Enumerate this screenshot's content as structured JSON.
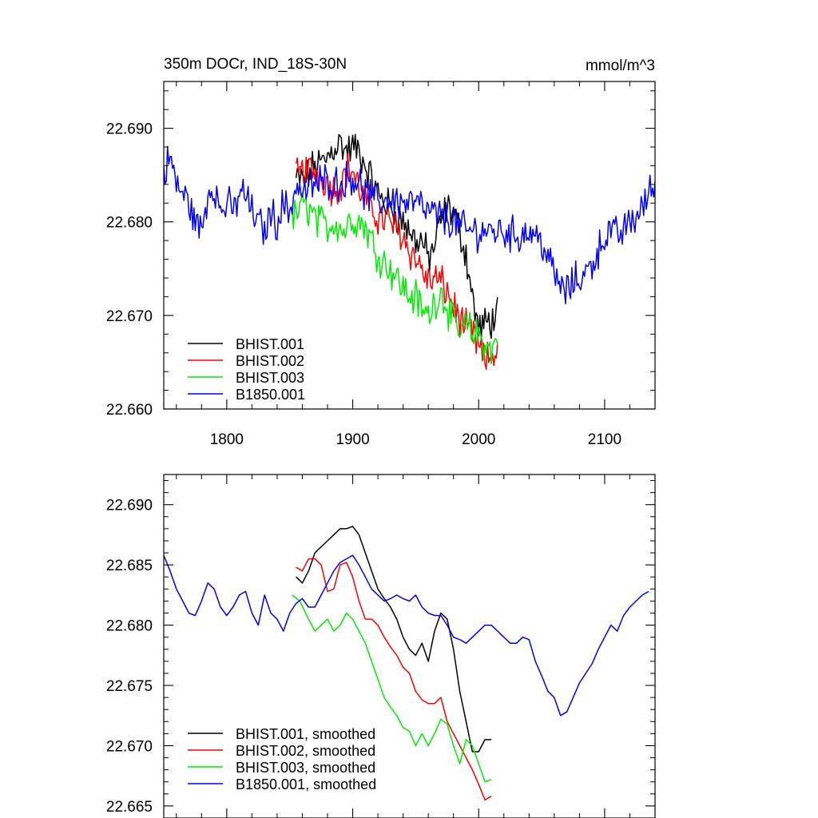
{
  "colors": {
    "BHIST.001": "#000000",
    "BHIST.002": "#ff0000",
    "BHIST.003": "#00ee00",
    "B1850.001": "#0000ff"
  },
  "chart_data": [
    {
      "type": "line",
      "title": "350m DOCr, IND_18S-30N",
      "units": "mmol/m^3",
      "xlim": [
        1750,
        2140
      ],
      "ylim": [
        22.66,
        22.695
      ],
      "x_ticks": [
        1800,
        1900,
        2000,
        2100
      ],
      "x_tick_labels": [
        "1800",
        "1900",
        "2000",
        "2100"
      ],
      "y_ticks": [
        22.66,
        22.67,
        22.68,
        22.69
      ],
      "y_tick_labels": [
        "22.660",
        "22.670",
        "22.680",
        "22.690"
      ],
      "legend_position": "bottom-left",
      "grid": false,
      "noisy": true,
      "series": [
        {
          "name": "BHIST.001",
          "color": "#000000",
          "x": [
            1855,
            1862,
            1870,
            1878,
            1885,
            1890,
            1895,
            1900,
            1905,
            1910,
            1915,
            1920,
            1930,
            1940,
            1945,
            1950,
            1955,
            1960,
            1965,
            1970,
            1975,
            1980,
            1985,
            1990,
            1995,
            2000,
            2005,
            2010,
            2015
          ],
          "y": [
            22.6845,
            22.6845,
            22.686,
            22.6865,
            22.688,
            22.6885,
            22.6875,
            22.688,
            22.6875,
            22.686,
            22.6845,
            22.683,
            22.6815,
            22.68,
            22.679,
            22.678,
            22.678,
            22.676,
            22.6775,
            22.68,
            22.6815,
            22.681,
            22.679,
            22.6765,
            22.672,
            22.6685,
            22.669,
            22.6695,
            22.67
          ]
        },
        {
          "name": "BHIST.002",
          "color": "#ff0000",
          "x": [
            1855,
            1862,
            1870,
            1878,
            1885,
            1890,
            1895,
            1900,
            1905,
            1910,
            1915,
            1920,
            1930,
            1940,
            1945,
            1950,
            1955,
            1960,
            1965,
            1970,
            1975,
            1980,
            1985,
            1990,
            1995,
            2000,
            2005,
            2010,
            2015
          ],
          "y": [
            22.685,
            22.6855,
            22.6855,
            22.6845,
            22.6835,
            22.684,
            22.6855,
            22.6855,
            22.6835,
            22.6825,
            22.6815,
            22.6805,
            22.68,
            22.6785,
            22.677,
            22.676,
            22.675,
            22.6735,
            22.674,
            22.6735,
            22.6725,
            22.671,
            22.6695,
            22.6685,
            22.668,
            22.6665,
            22.665,
            22.6655,
            22.6665
          ]
        },
        {
          "name": "BHIST.003",
          "color": "#00ee00",
          "x": [
            1852,
            1858,
            1865,
            1872,
            1880,
            1887,
            1893,
            1900,
            1905,
            1910,
            1915,
            1920,
            1930,
            1940,
            1945,
            1950,
            1955,
            1960,
            1965,
            1970,
            1975,
            1980,
            1985,
            1990,
            1995,
            2000,
            2005,
            2010,
            2015
          ],
          "y": [
            22.68,
            22.6815,
            22.6815,
            22.68,
            22.6795,
            22.68,
            22.679,
            22.6805,
            22.68,
            22.6795,
            22.678,
            22.6765,
            22.675,
            22.673,
            22.672,
            22.672,
            22.6705,
            22.67,
            22.6715,
            22.6725,
            22.671,
            22.669,
            22.668,
            22.669,
            22.668,
            22.668,
            22.667,
            22.666,
            22.668
          ]
        },
        {
          "name": "B1850.001",
          "color": "#0000ff",
          "x": [
            1750,
            1755,
            1760,
            1765,
            1770,
            1775,
            1780,
            1785,
            1790,
            1795,
            1800,
            1805,
            1810,
            1815,
            1820,
            1825,
            1830,
            1835,
            1840,
            1845,
            1850,
            1855,
            1860,
            1870,
            1880,
            1890,
            1900,
            1910,
            1920,
            1930,
            1940,
            1950,
            1960,
            1970,
            1980,
            1990,
            2000,
            2010,
            2020,
            2030,
            2040,
            2050,
            2055,
            2060,
            2065,
            2070,
            2075,
            2080,
            2085,
            2090,
            2095,
            2100,
            2105,
            2110,
            2115,
            2120,
            2125,
            2130,
            2135,
            2140
          ],
          "y": [
            22.685,
            22.687,
            22.684,
            22.683,
            22.682,
            22.68,
            22.679,
            22.683,
            22.684,
            22.681,
            22.682,
            22.681,
            22.683,
            22.683,
            22.681,
            22.68,
            22.679,
            22.681,
            22.68,
            22.682,
            22.681,
            22.684,
            22.683,
            22.684,
            22.6845,
            22.684,
            22.685,
            22.683,
            22.682,
            22.6825,
            22.682,
            22.682,
            22.681,
            22.6805,
            22.68,
            22.679,
            22.679,
            22.679,
            22.679,
            22.6785,
            22.679,
            22.678,
            22.676,
            22.6745,
            22.673,
            22.6725,
            22.6735,
            22.674,
            22.6745,
            22.6755,
            22.677,
            22.6785,
            22.679,
            22.6785,
            22.679,
            22.68,
            22.6805,
            22.6815,
            22.683,
            22.684
          ]
        }
      ]
    },
    {
      "type": "line",
      "xlim": [
        1750,
        2140
      ],
      "ylim": [
        22.664,
        22.6925
      ],
      "x_ticks": [
        1800,
        1900,
        2000,
        2100
      ],
      "y_ticks": [
        22.665,
        22.67,
        22.675,
        22.68,
        22.685,
        22.69
      ],
      "y_tick_labels": [
        "22.665",
        "22.670",
        "22.675",
        "22.680",
        "22.685",
        "22.690"
      ],
      "legend_position": "bottom-left",
      "grid": false,
      "noisy": false,
      "series": [
        {
          "name": "BHIST.001, smoothed",
          "color": "#000000",
          "x": [
            1855,
            1860,
            1865,
            1870,
            1875,
            1880,
            1885,
            1890,
            1895,
            1900,
            1905,
            1910,
            1915,
            1920,
            1925,
            1930,
            1935,
            1940,
            1945,
            1950,
            1955,
            1960,
            1965,
            1970,
            1975,
            1980,
            1985,
            1990,
            1995,
            2000,
            2005,
            2010
          ],
          "y": [
            22.684,
            22.6835,
            22.6845,
            22.686,
            22.6865,
            22.687,
            22.6875,
            22.688,
            22.688,
            22.6882,
            22.6875,
            22.686,
            22.6845,
            22.683,
            22.6822,
            22.6815,
            22.6805,
            22.679,
            22.678,
            22.6775,
            22.6785,
            22.677,
            22.6795,
            22.681,
            22.6805,
            22.678,
            22.6745,
            22.672,
            22.6695,
            22.6695,
            22.6705,
            22.6705
          ]
        },
        {
          "name": "BHIST.002, smoothed",
          "color": "#ff0000",
          "x": [
            1855,
            1860,
            1865,
            1870,
            1875,
            1880,
            1885,
            1890,
            1895,
            1900,
            1905,
            1910,
            1915,
            1920,
            1925,
            1930,
            1935,
            1940,
            1945,
            1950,
            1955,
            1960,
            1965,
            1970,
            1975,
            1980,
            1985,
            1990,
            1995,
            2000,
            2005,
            2010
          ],
          "y": [
            22.6848,
            22.6845,
            22.6855,
            22.6855,
            22.685,
            22.6828,
            22.683,
            22.685,
            22.6852,
            22.684,
            22.682,
            22.6805,
            22.6805,
            22.68,
            22.679,
            22.6782,
            22.6775,
            22.6765,
            22.676,
            22.6745,
            22.6738,
            22.6735,
            22.6735,
            22.674,
            22.672,
            22.671,
            22.67,
            22.669,
            22.668,
            22.6668,
            22.6655,
            22.6658
          ]
        },
        {
          "name": "BHIST.003, smoothed",
          "color": "#00ee00",
          "x": [
            1852,
            1858,
            1865,
            1870,
            1875,
            1880,
            1885,
            1890,
            1895,
            1900,
            1905,
            1910,
            1915,
            1920,
            1925,
            1930,
            1935,
            1940,
            1945,
            1950,
            1955,
            1960,
            1965,
            1970,
            1975,
            1980,
            1985,
            1990,
            1995,
            2000,
            2005,
            2010
          ],
          "y": [
            22.6825,
            22.682,
            22.6805,
            22.6795,
            22.68,
            22.6805,
            22.6795,
            22.68,
            22.681,
            22.6805,
            22.6795,
            22.6785,
            22.677,
            22.6755,
            22.674,
            22.6732,
            22.6725,
            22.6715,
            22.6712,
            22.67,
            22.671,
            22.67,
            22.671,
            22.6722,
            22.6718,
            22.67,
            22.6685,
            22.6705,
            22.67,
            22.6685,
            22.667,
            22.6672
          ]
        },
        {
          "name": "B1850.001, smoothed",
          "color": "#0000ff",
          "x": [
            1750,
            1755,
            1760,
            1765,
            1770,
            1775,
            1780,
            1785,
            1790,
            1795,
            1800,
            1805,
            1810,
            1815,
            1820,
            1825,
            1830,
            1835,
            1840,
            1845,
            1850,
            1855,
            1860,
            1865,
            1870,
            1875,
            1880,
            1885,
            1890,
            1895,
            1900,
            1905,
            1910,
            1915,
            1920,
            1925,
            1930,
            1935,
            1940,
            1945,
            1950,
            1955,
            1960,
            1965,
            1970,
            1975,
            1980,
            1985,
            1990,
            1995,
            2000,
            2005,
            2010,
            2015,
            2020,
            2025,
            2030,
            2035,
            2040,
            2045,
            2050,
            2055,
            2060,
            2065,
            2070,
            2075,
            2080,
            2085,
            2090,
            2095,
            2100,
            2105,
            2110,
            2115,
            2120,
            2125,
            2130,
            2135
          ],
          "y": [
            22.6858,
            22.6845,
            22.683,
            22.682,
            22.681,
            22.6808,
            22.682,
            22.6835,
            22.683,
            22.6815,
            22.6808,
            22.6815,
            22.6825,
            22.6828,
            22.681,
            22.68,
            22.6825,
            22.681,
            22.6805,
            22.6795,
            22.681,
            22.6818,
            22.6822,
            22.6815,
            22.6815,
            22.6825,
            22.6835,
            22.6845,
            22.6852,
            22.6855,
            22.6858,
            22.685,
            22.684,
            22.683,
            22.6825,
            22.682,
            22.6822,
            22.6825,
            22.6822,
            22.682,
            22.6825,
            22.6815,
            22.681,
            22.6808,
            22.6808,
            22.68,
            22.679,
            22.6788,
            22.6785,
            22.679,
            22.6795,
            22.68,
            22.68,
            22.6795,
            22.679,
            22.6785,
            22.6785,
            22.679,
            22.6788,
            22.677,
            22.6758,
            22.6745,
            22.674,
            22.6725,
            22.6728,
            22.674,
            22.6752,
            22.676,
            22.6768,
            22.678,
            22.679,
            22.68,
            22.6795,
            22.6808,
            22.6815,
            22.682,
            22.6825,
            22.6828
          ]
        }
      ]
    }
  ]
}
